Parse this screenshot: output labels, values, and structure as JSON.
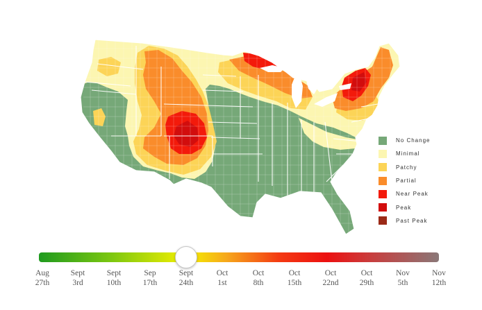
{
  "legend": [
    {
      "label": "No Change",
      "color": "#76a878"
    },
    {
      "label": "Minimal",
      "color": "#fcf6b1"
    },
    {
      "label": "Patchy",
      "color": "#fcd457"
    },
    {
      "label": "Partial",
      "color": "#fa8c2b"
    },
    {
      "label": "Near Peak",
      "color": "#f31a0b"
    },
    {
      "label": "Peak",
      "color": "#d20d0d"
    },
    {
      "label": "Past Peak",
      "color": "#9b2a17"
    }
  ],
  "timeline": {
    "selected_index": 4,
    "ticks": [
      {
        "month": "Aug",
        "day": "27th"
      },
      {
        "month": "Sept",
        "day": "3rd"
      },
      {
        "month": "Sept",
        "day": "10th"
      },
      {
        "month": "Sep",
        "day": "17th"
      },
      {
        "month": "Sept",
        "day": "24th"
      },
      {
        "month": "Oct",
        "day": "1st"
      },
      {
        "month": "Oct",
        "day": "8th"
      },
      {
        "month": "Oct",
        "day": "15th"
      },
      {
        "month": "Oct",
        "day": "22nd"
      },
      {
        "month": "Oct",
        "day": "29th"
      },
      {
        "month": "Nov",
        "day": "5th"
      },
      {
        "month": "Nov",
        "day": "12th"
      }
    ]
  }
}
